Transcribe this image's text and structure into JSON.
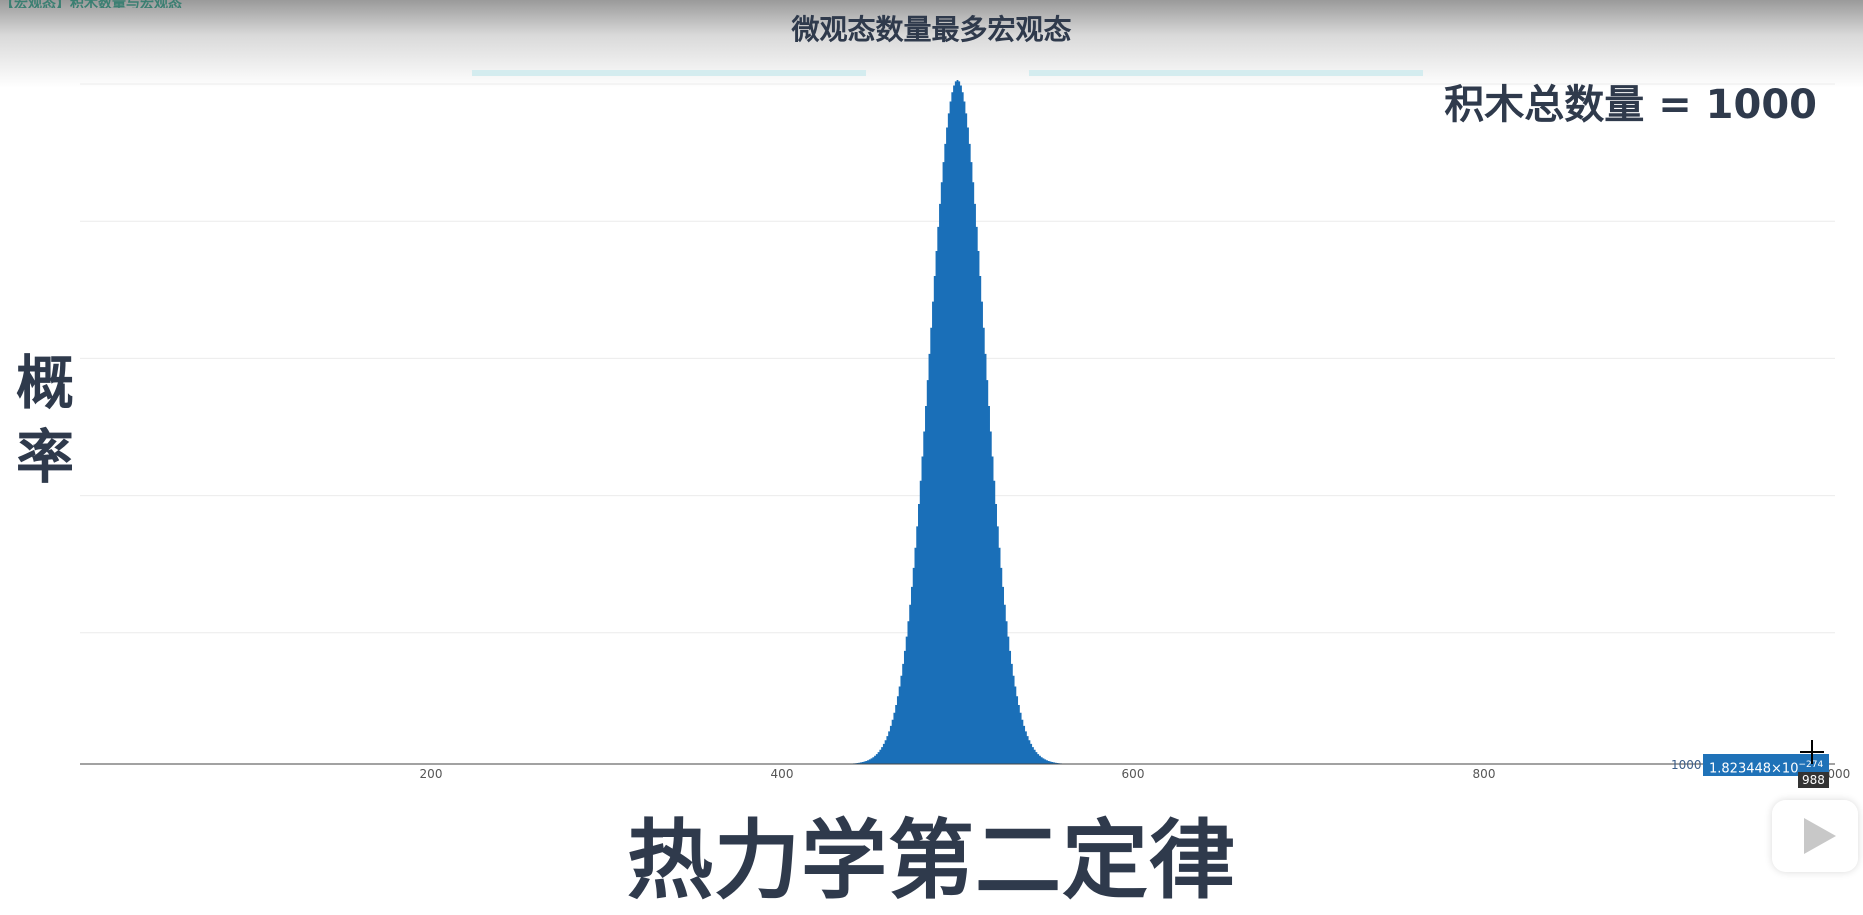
{
  "banner": {
    "text": "【宏观态】积木数量与宏观态"
  },
  "caption": {
    "top": "微观态数量最多宏观态"
  },
  "annotation": {
    "total_label": "积木总数量 = 1000"
  },
  "axis": {
    "ylabel": "概率"
  },
  "video": {
    "title": "热力学第二定律"
  },
  "tooltip": {
    "x_label": "1000",
    "value_main": "1.823448×10",
    "value_exp": "−274",
    "cursor_value": "988"
  },
  "colors": {
    "bar": "#1a6fb8",
    "text": "#2f3a4c",
    "axis": "#444444"
  },
  "chart_data": {
    "type": "bar",
    "distribution": "binomial",
    "n": 1000,
    "p": 0.5,
    "x_range": [
      0,
      1000
    ],
    "xticks": [
      200,
      400,
      600,
      800,
      1000
    ],
    "xtick_labels": [
      "200",
      "400",
      "600",
      "800",
      "1000"
    ],
    "grid": true,
    "ylim": [
      0,
      0.0253
    ],
    "peak": {
      "x": 500,
      "y": 0.0252
    }
  }
}
